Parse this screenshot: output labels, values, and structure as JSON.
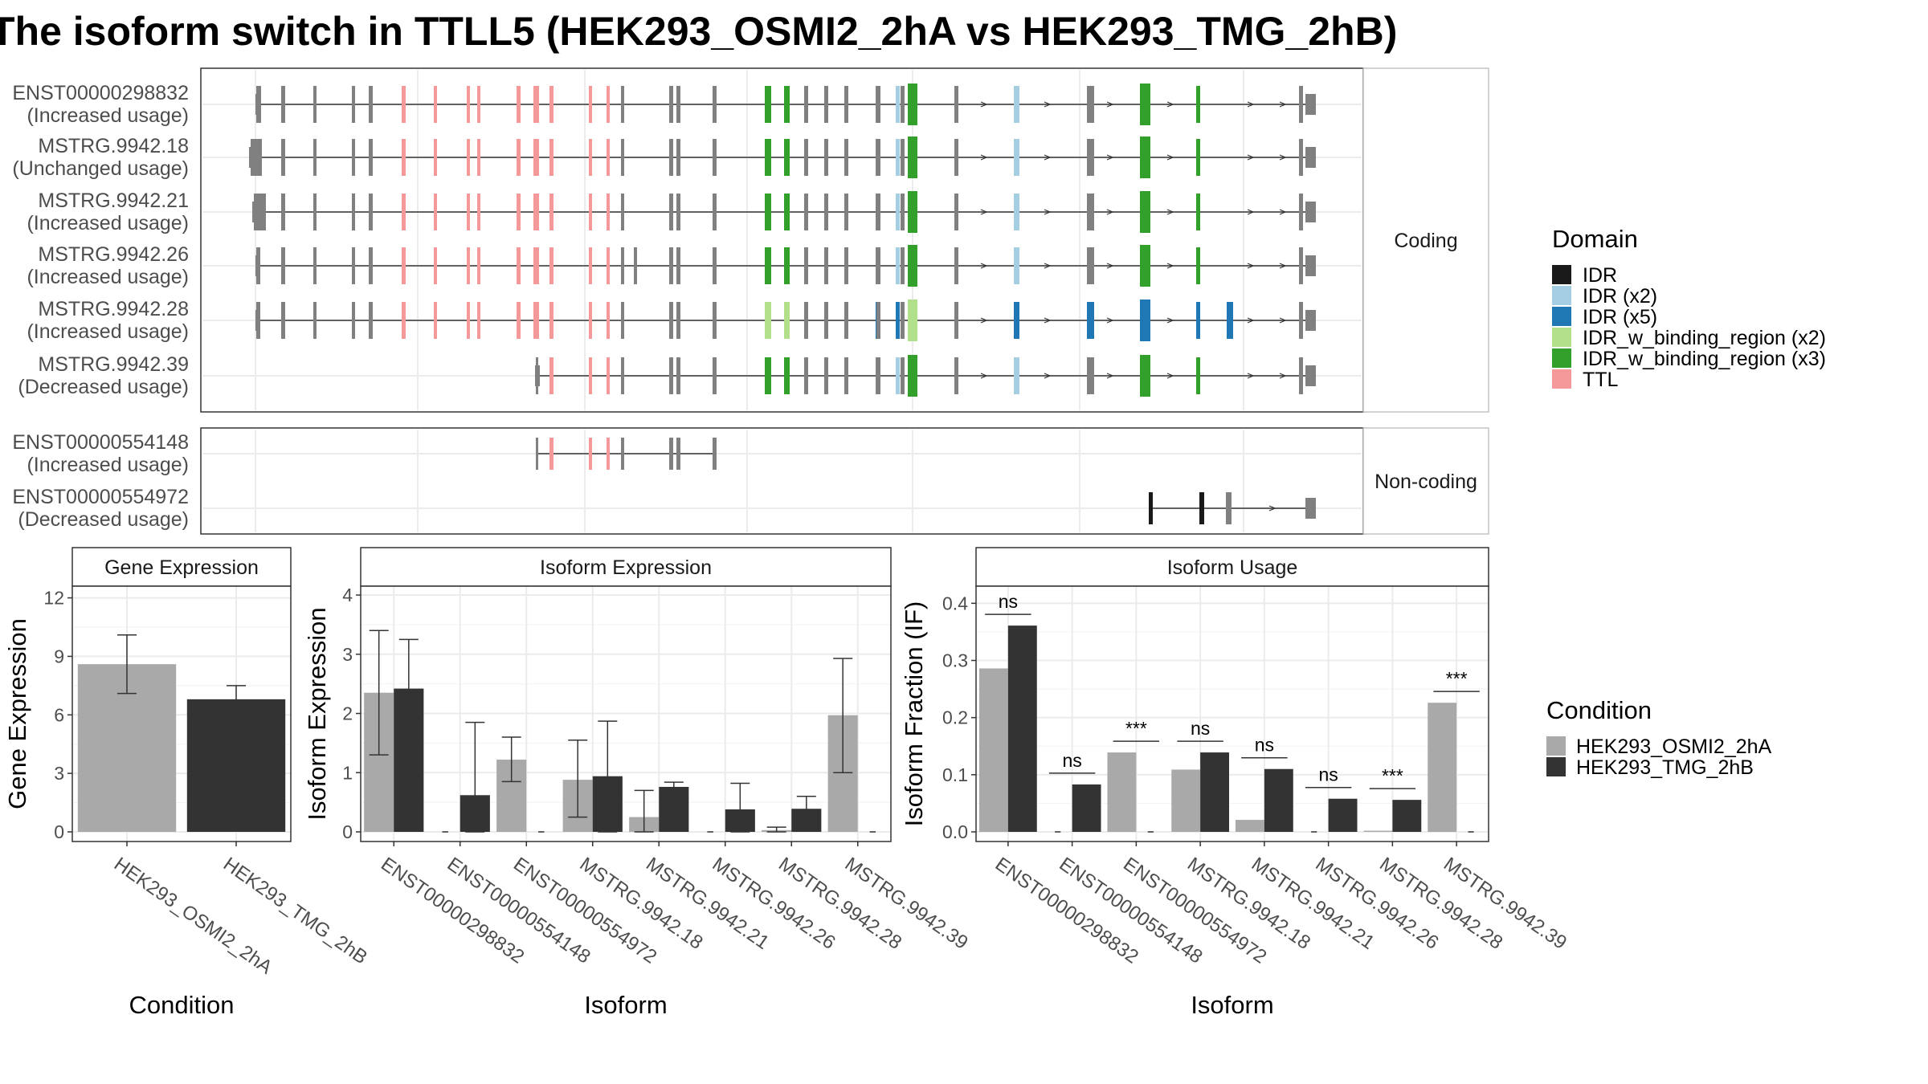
{
  "title": "The isoform switch in TTLL5 (HEK293_OSMI2_2hA vs HEK293_TMG_2hB)",
  "colors": {
    "IDR": "#1a1a1a",
    "IDR (x2)": "#a6cee3",
    "IDR (x5)": "#1f78b4",
    "IDR_w_binding_region (x2)": "#b2df8a",
    "IDR_w_binding_region (x3)": "#33a02c",
    "TTL": "#f4989a",
    "exon": "#808080",
    "cond1": "#a9a9a9",
    "cond2": "#333333"
  },
  "structure": {
    "facets": {
      "coding": "Coding",
      "noncoding": "Non-coding"
    },
    "coding": [
      {
        "id": "ENST00000298832",
        "status": "(Increased usage)"
      },
      {
        "id": "MSTRG.9942.18",
        "status": "(Unchanged usage)"
      },
      {
        "id": "MSTRG.9942.21",
        "status": "(Increased usage)"
      },
      {
        "id": "MSTRG.9942.26",
        "status": "(Increased usage)"
      },
      {
        "id": "MSTRG.9942.28",
        "status": "(Increased usage)"
      },
      {
        "id": "MSTRG.9942.39",
        "status": "(Decreased usage)"
      }
    ],
    "noncoding": [
      {
        "id": "ENST00000554148",
        "status": "(Increased usage)"
      },
      {
        "id": "ENST00000554972",
        "status": "(Decreased usage)"
      }
    ]
  },
  "legend_domain": {
    "title": "Domain",
    "items": [
      "IDR",
      "IDR (x2)",
      "IDR (x5)",
      "IDR_w_binding_region (x2)",
      "IDR_w_binding_region (x3)",
      "TTL"
    ]
  },
  "legend_condition": {
    "title": "Condition",
    "items": [
      "HEK293_OSMI2_2hA",
      "HEK293_TMG_2hB"
    ]
  },
  "chart_data": [
    {
      "type": "bar",
      "title": "Gene Expression",
      "xlabel": "Condition",
      "ylabel": "Gene Expression",
      "ylim": [
        0,
        12.6
      ],
      "yticks": [
        0,
        3,
        6,
        9,
        12
      ],
      "categories": [
        "HEK293_OSMI2_2hA",
        "HEK293_TMG_2hB"
      ],
      "values": [
        8.6,
        6.8
      ],
      "errors": [
        [
          7.1,
          10.1
        ],
        [
          6.1,
          7.5
        ]
      ]
    },
    {
      "type": "bar",
      "title": "Isoform Expression",
      "xlabel": "Isoform",
      "ylabel": "Isoform Expression",
      "ylim": [
        0,
        4.15
      ],
      "yticks": [
        0,
        1,
        2,
        3,
        4
      ],
      "categories": [
        "ENST00000298832",
        "ENST00000554148",
        "ENST00000554972",
        "MSTRG.9942.18",
        "MSTRG.9942.21",
        "MSTRG.9942.26",
        "MSTRG.9942.28",
        "MSTRG.9942.39"
      ],
      "series": [
        {
          "name": "HEK293_OSMI2_2hA",
          "values": [
            2.35,
            0,
            1.22,
            0.88,
            0.25,
            0,
            0.03,
            1.97
          ],
          "errors": [
            [
              1.3,
              3.4
            ],
            null,
            [
              0.85,
              1.6
            ],
            [
              0.25,
              1.55
            ],
            [
              0,
              0.7
            ],
            null,
            [
              0,
              0.08
            ],
            [
              1.0,
              2.93
            ]
          ]
        },
        {
          "name": "HEK293_TMG_2hB",
          "values": [
            2.42,
            0.62,
            0,
            0.94,
            0.76,
            0.38,
            0.39,
            0
          ],
          "errors": [
            [
              1.6,
              3.25
            ],
            [
              0,
              1.85
            ],
            null,
            [
              0,
              1.87
            ],
            [
              0.68,
              0.84
            ],
            [
              0,
              0.82
            ],
            [
              0.18,
              0.6
            ],
            null
          ]
        }
      ]
    },
    {
      "type": "bar",
      "title": "Isoform Usage",
      "xlabel": "Isoform",
      "ylabel": "Isoform Fraction (IF)",
      "ylim": [
        0,
        0.43
      ],
      "yticks": [
        0.0,
        0.1,
        0.2,
        0.3,
        0.4
      ],
      "categories": [
        "ENST00000298832",
        "ENST00000554148",
        "ENST00000554972",
        "MSTRG.9942.18",
        "MSTRG.9942.21",
        "MSTRG.9942.26",
        "MSTRG.9942.28",
        "MSTRG.9942.39"
      ],
      "series": [
        {
          "name": "HEK293_OSMI2_2hA",
          "values": [
            0.286,
            0,
            0.139,
            0.109,
            0.021,
            0,
            0.002,
            0.226
          ]
        },
        {
          "name": "HEK293_TMG_2hB",
          "values": [
            0.361,
            0.083,
            0,
            0.139,
            0.11,
            0.058,
            0.056,
            0
          ]
        }
      ],
      "significance": [
        "ns",
        "ns",
        "***",
        "ns",
        "ns",
        "ns",
        "***",
        "***"
      ]
    }
  ]
}
